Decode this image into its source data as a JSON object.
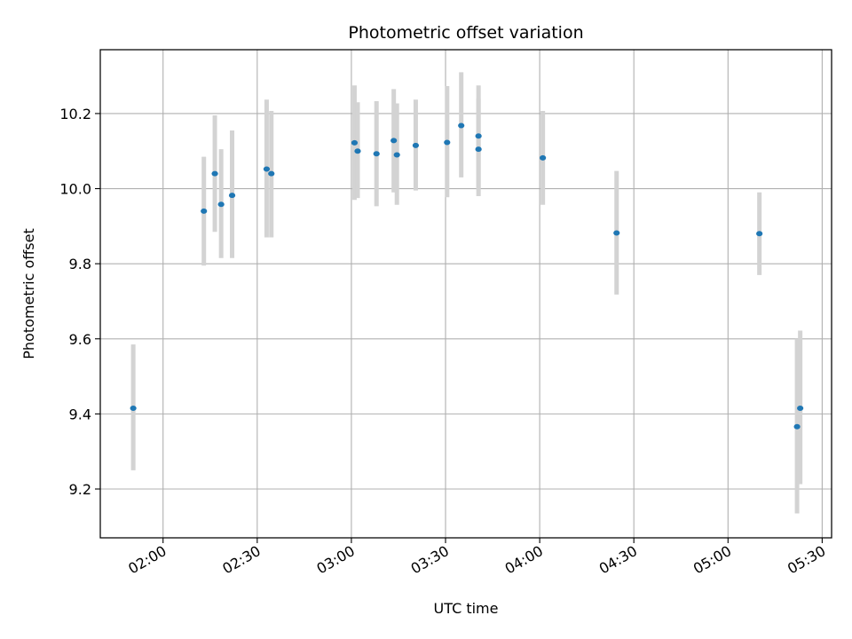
{
  "chart_data": {
    "type": "scatter",
    "title": "Photometric offset variation",
    "xlabel": "UTC time",
    "ylabel": "Photometric offset",
    "xlim": [
      "01:40",
      "05:33"
    ],
    "ylim": [
      9.07,
      10.37
    ],
    "x_ticks": [
      "02:00",
      "02:30",
      "03:00",
      "03:30",
      "04:00",
      "04:30",
      "05:00",
      "05:30"
    ],
    "y_ticks": [
      9.2,
      9.4,
      9.6,
      9.8,
      10.0,
      10.2
    ],
    "grid": true,
    "colors": {
      "point": "#1f77b4",
      "errorbar": "#d3d3d3",
      "grid": "#b0b0b0"
    },
    "series": [
      {
        "points": [
          {
            "x": "01:50:30",
            "y": 9.415,
            "ylow": 9.25,
            "yhigh": 9.585
          },
          {
            "x": "02:13:00",
            "y": 9.94,
            "ylow": 9.795,
            "yhigh": 10.085
          },
          {
            "x": "02:16:30",
            "y": 10.04,
            "ylow": 9.885,
            "yhigh": 10.195
          },
          {
            "x": "02:18:30",
            "y": 9.958,
            "ylow": 9.815,
            "yhigh": 10.105
          },
          {
            "x": "02:22:00",
            "y": 9.982,
            "ylow": 9.815,
            "yhigh": 10.155
          },
          {
            "x": "02:33:00",
            "y": 10.052,
            "ylow": 9.87,
            "yhigh": 10.237
          },
          {
            "x": "02:34:30",
            "y": 10.04,
            "ylow": 9.87,
            "yhigh": 10.207
          },
          {
            "x": "03:01:00",
            "y": 10.122,
            "ylow": 9.97,
            "yhigh": 10.275
          },
          {
            "x": "03:02:00",
            "y": 10.1,
            "ylow": 9.975,
            "yhigh": 10.23
          },
          {
            "x": "03:08:00",
            "y": 10.093,
            "ylow": 9.953,
            "yhigh": 10.233
          },
          {
            "x": "03:13:30",
            "y": 10.128,
            "ylow": 9.99,
            "yhigh": 10.265
          },
          {
            "x": "03:14:30",
            "y": 10.09,
            "ylow": 9.957,
            "yhigh": 10.227
          },
          {
            "x": "03:20:30",
            "y": 10.115,
            "ylow": 9.995,
            "yhigh": 10.237
          },
          {
            "x": "03:30:30",
            "y": 10.123,
            "ylow": 9.977,
            "yhigh": 10.273
          },
          {
            "x": "03:35:00",
            "y": 10.168,
            "ylow": 10.03,
            "yhigh": 10.31
          },
          {
            "x": "03:40:30",
            "y": 10.14,
            "ylow": 10.0,
            "yhigh": 10.275
          },
          {
            "x": "03:40:30",
            "y": 10.105,
            "ylow": 9.98,
            "yhigh": 10.24
          },
          {
            "x": "04:01:00",
            "y": 10.082,
            "ylow": 9.957,
            "yhigh": 10.207
          },
          {
            "x": "04:24:30",
            "y": 9.882,
            "ylow": 9.718,
            "yhigh": 10.047
          },
          {
            "x": "05:10:00",
            "y": 9.88,
            "ylow": 9.77,
            "yhigh": 9.99
          },
          {
            "x": "05:22:00",
            "y": 9.366,
            "ylow": 9.135,
            "yhigh": 9.6
          },
          {
            "x": "05:23:00",
            "y": 9.415,
            "ylow": 9.213,
            "yhigh": 9.622
          }
        ]
      }
    ]
  }
}
